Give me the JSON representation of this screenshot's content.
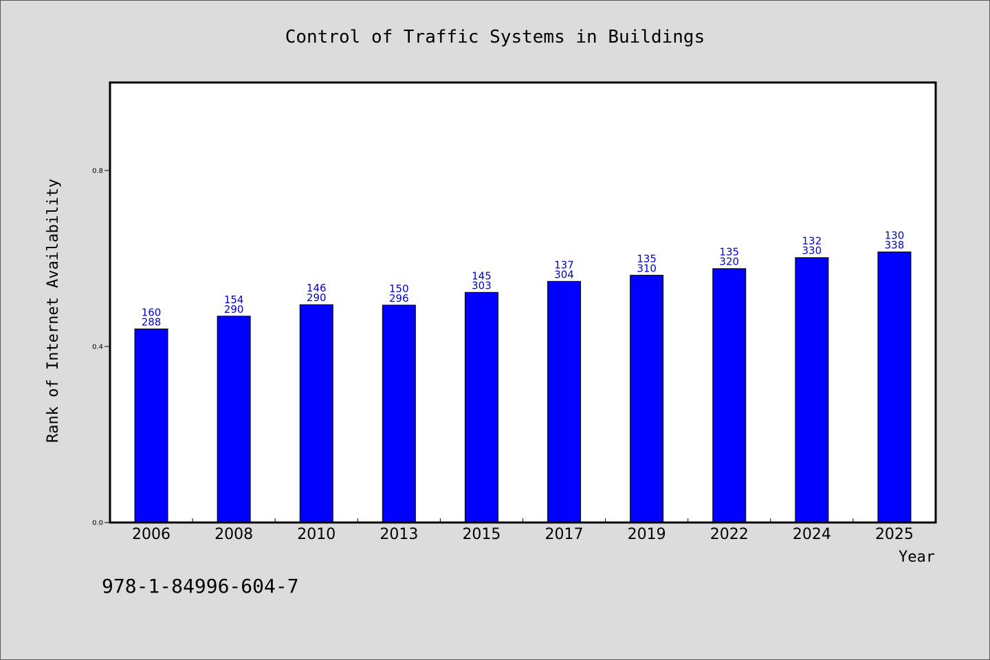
{
  "chart_data": {
    "type": "bar",
    "title": "Control of Traffic Systems in Buildings",
    "xlabel": "Year",
    "ylabel": "Rank of Internet Availability",
    "categories": [
      "2006",
      "2008",
      "2010",
      "2013",
      "2015",
      "2017",
      "2019",
      "2022",
      "2024",
      "2025"
    ],
    "values": [
      0.44,
      0.469,
      0.495,
      0.494,
      0.523,
      0.548,
      0.562,
      0.577,
      0.602,
      0.615
    ],
    "label_top": [
      "160",
      "154",
      "146",
      "150",
      "145",
      "137",
      "135",
      "135",
      "132",
      "130"
    ],
    "label_bottom": [
      "288",
      "290",
      "290",
      "296",
      "303",
      "304",
      "310",
      "320",
      "330",
      "338"
    ],
    "ylim": [
      0,
      1.0
    ],
    "yticks": [
      "0.0",
      "0.4",
      "0.8"
    ],
    "ytick_values": [
      0,
      0.4,
      0.8
    ],
    "bar_color": "#0000ff",
    "label_color": "#0000cc",
    "grid": false
  },
  "footer": {
    "isbn": "978-1-84996-604-7"
  }
}
